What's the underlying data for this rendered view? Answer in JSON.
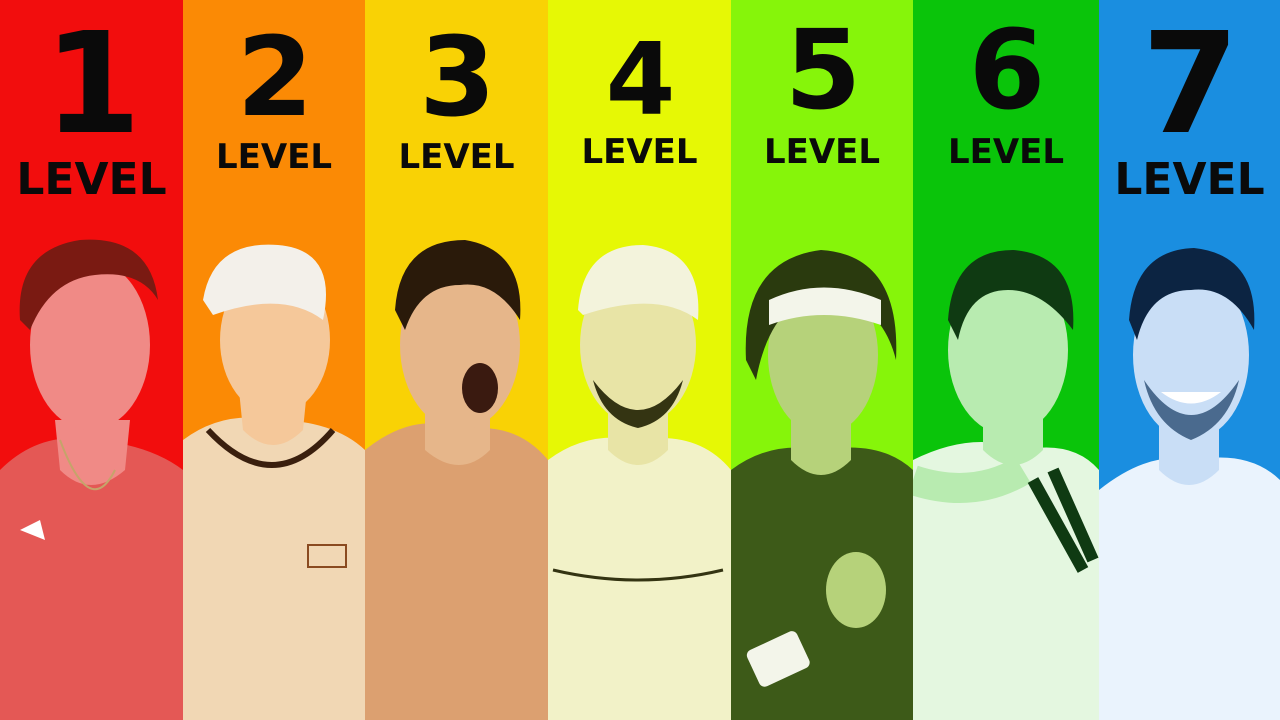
{
  "panels": [
    {
      "number": "1",
      "label": "LEVEL",
      "bg": "#f20d0d",
      "tint": "#e8504f",
      "skin": "#f08a86",
      "hair": "#7a1a12",
      "shirt": "#e45855"
    },
    {
      "number": "2",
      "label": "LEVEL",
      "bg": "#fb8a05",
      "tint": "#e8a86a",
      "skin": "#f5c89a",
      "hair": "#3a1f0e",
      "shirt": "#f1d7b4"
    },
    {
      "number": "3",
      "label": "LEVEL",
      "bg": "#f9d205",
      "tint": "#d7a86a",
      "skin": "#e6b68a",
      "hair": "#2a1a0a",
      "shirt": "#dca070"
    },
    {
      "number": "4",
      "label": "LEVEL",
      "bg": "#e6f805",
      "tint": "#d2d67a",
      "skin": "#e8e4a6",
      "hair": "#343412",
      "shirt": "#f2f2c8"
    },
    {
      "number": "5",
      "label": "LEVEL",
      "bg": "#86f50a",
      "tint": "#6d9a2a",
      "skin": "#b6d27a",
      "hair": "#2a3a0e",
      "shirt": "#3d5a18"
    },
    {
      "number": "6",
      "label": "LEVEL",
      "bg": "#0ac40a",
      "tint": "#6fd66f",
      "skin": "#b8ebb0",
      "hair": "#0f3a12",
      "shirt": "#e4f7e0"
    },
    {
      "number": "7",
      "label": "LEVEL",
      "bg": "#1a8ee0",
      "tint": "#6fa9e6",
      "skin": "#c9def6",
      "hair": "#0c2442",
      "shirt": "#eaf3fd"
    }
  ]
}
